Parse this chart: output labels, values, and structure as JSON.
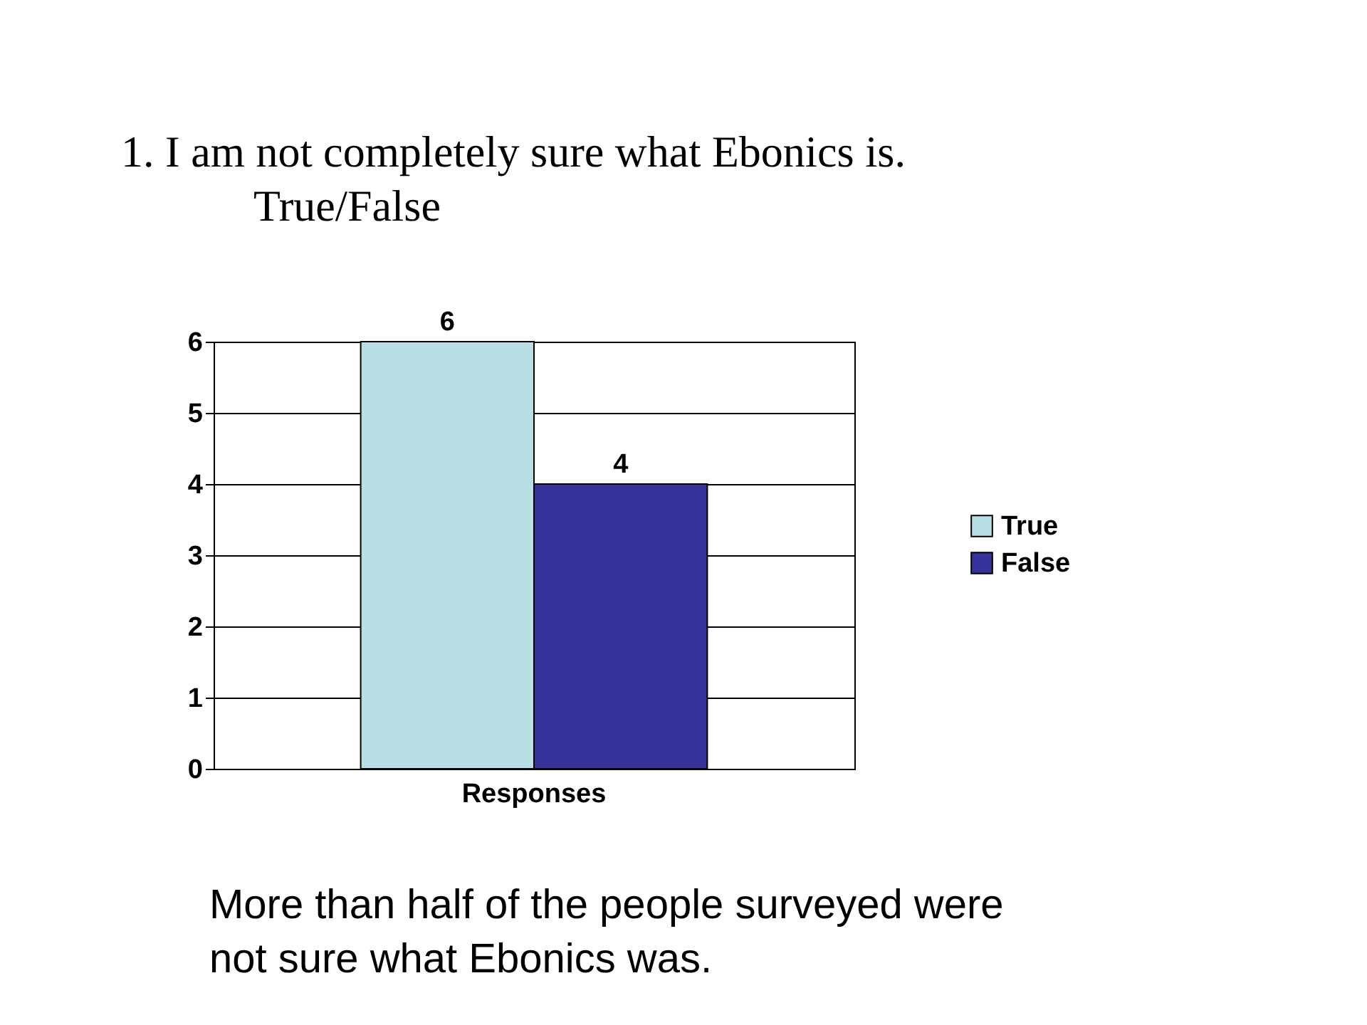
{
  "chart_data": {
    "type": "bar",
    "title": "1. I am not completely sure what Ebonics is.",
    "subtitle": "True/False",
    "categories": [
      "Responses"
    ],
    "series": [
      {
        "name": "True",
        "color": "#b8e0e4",
        "values": [
          6
        ]
      },
      {
        "name": "False",
        "color": "#333399",
        "values": [
          4
        ]
      }
    ],
    "ylim": [
      0,
      6
    ],
    "yticks": [
      0,
      1,
      2,
      3,
      4,
      5,
      6
    ],
    "grid": "y",
    "legend": "right",
    "data_labels": true,
    "annotations": [
      "More than half of the people surveyed were not sure what Ebonics was."
    ]
  }
}
